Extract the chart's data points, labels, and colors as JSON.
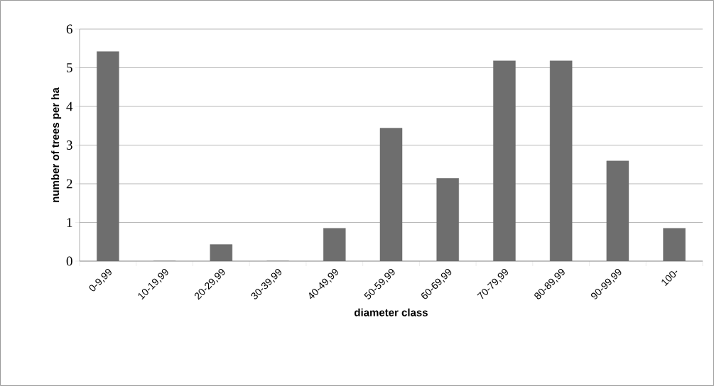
{
  "chart_data": {
    "type": "bar",
    "xlabel": "diameter class",
    "ylabel": "number of trees per ha",
    "categories": [
      "0-9,99",
      "10-19,99",
      "20-29,99",
      "30-39,99",
      "40-49,99",
      "50-59,99",
      "60-69,99",
      "70-79,99",
      "80-89,99",
      "90-99,99",
      "100-"
    ],
    "values": [
      5.42,
      0,
      0.43,
      0,
      0.85,
      3.44,
      2.14,
      5.18,
      5.18,
      2.59,
      0.85
    ],
    "color": "#6e6e6e",
    "ylim": [
      0,
      6
    ],
    "yticks": [
      0,
      1,
      2,
      3,
      4,
      5,
      6
    ],
    "grid": "y"
  }
}
